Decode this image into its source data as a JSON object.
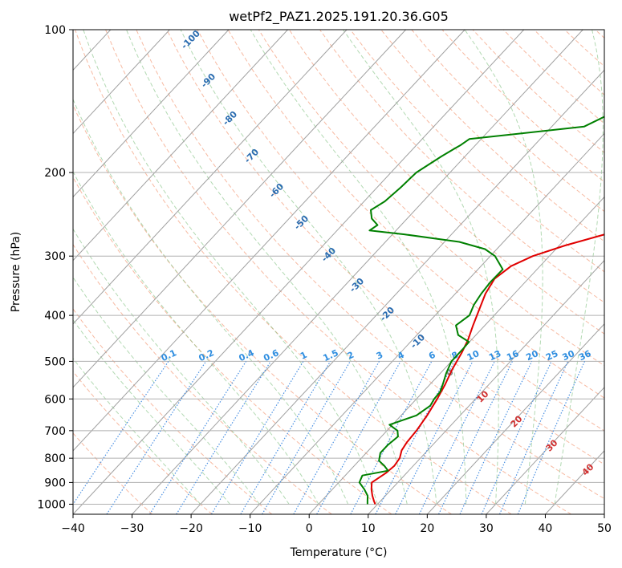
{
  "chart_data": {
    "type": "line",
    "title": "wetPf2_PAZ1.2025.191.20.36.G05",
    "xlabel": "Temperature (°C)",
    "ylabel": "Pressure (hPa)",
    "xlim": [
      -40,
      50
    ],
    "ylim": [
      1050,
      100
    ],
    "y_scale": "log",
    "grid": true,
    "x_ticks": [
      "−40",
      "−30",
      "−20",
      "−10",
      "0",
      "10",
      "20",
      "30",
      "40",
      "50"
    ],
    "y_ticks": [
      "100",
      "200",
      "300",
      "400",
      "500",
      "600",
      "700",
      "800",
      "900",
      "1000"
    ],
    "series": [
      {
        "color": "#e00000",
        "pressure": [
          1000,
          985,
          960,
          930,
          900,
          860,
          830,
          800,
          770,
          740,
          700,
          650,
          600,
          560,
          520,
          480,
          450,
          420,
          390,
          360,
          335,
          315,
          300,
          285,
          270,
          250,
          235,
          220,
          200,
          180,
          160,
          140,
          120,
          110,
          100
        ],
        "temperature": [
          9.6,
          8.9,
          7.8,
          6.6,
          5.6,
          6.5,
          6.8,
          6.5,
          5.6,
          5.2,
          5.0,
          4.4,
          3.5,
          2.6,
          1.4,
          0.4,
          -0.6,
          -2.0,
          -3.4,
          -4.9,
          -5.7,
          -4.9,
          -2.8,
          1.0,
          6.0,
          14.0,
          18.0,
          19.5,
          21.3,
          22.9,
          25.0,
          28.0,
          30.5,
          32.5,
          35.5
        ]
      },
      {
        "color": "#008000",
        "pressure": [
          1000,
          985,
          960,
          930,
          900,
          870,
          850,
          830,
          810,
          780,
          750,
          720,
          700,
          680,
          650,
          620,
          600,
          580,
          560,
          530,
          500,
          470,
          455,
          440,
          420,
          400,
          380,
          360,
          340,
          320,
          300,
          290,
          280,
          270,
          265,
          258,
          250,
          240,
          230,
          215,
          200,
          185,
          178,
          175,
          170,
          160,
          150,
          140,
          120,
          100
        ],
        "temperature": [
          8.3,
          7.8,
          7.0,
          5.4,
          3.5,
          2.9,
          6.5,
          5.1,
          3.4,
          2.4,
          2.4,
          2.8,
          1.8,
          -0.5,
          2.6,
          3.4,
          3.0,
          2.9,
          2.2,
          1.0,
          0.0,
          0.0,
          -0.1,
          -3.0,
          -4.9,
          -4.2,
          -5.1,
          -5.6,
          -5.9,
          -5.8,
          -9.2,
          -12.0,
          -17.5,
          -28.0,
          -34.5,
          -34.0,
          -36.0,
          -37.5,
          -36.5,
          -36.0,
          -35.7,
          -34.0,
          -33.0,
          -32.5,
          -32.0,
          -14.5,
          -12.0,
          -8.5,
          -3.5,
          -0.5
        ]
      }
    ],
    "dry_adiabat_labels": [],
    "moist_adiabat_labels": [],
    "isotherm_labels": [
      "-100",
      "-90",
      "-80",
      "-70",
      "-60",
      "-50",
      "-40",
      "-30",
      "-20",
      "-10"
    ],
    "mixing_ratio_labels": [
      "0.1",
      "0.2",
      "0.4",
      "0.6",
      "1",
      "1.5",
      "2",
      "3",
      "4",
      "6",
      "8",
      "10",
      "13",
      "16",
      "20",
      "25",
      "30",
      "36"
    ],
    "moist_labels_red": [
      "10",
      "20",
      "30",
      "40"
    ],
    "zero_label": "0"
  }
}
